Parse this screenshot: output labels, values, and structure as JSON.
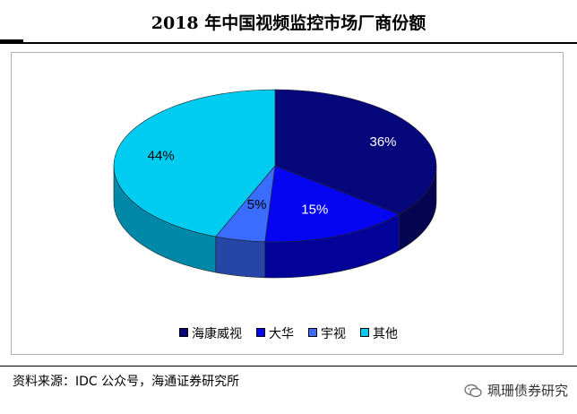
{
  "header": {
    "title": "2018 年中国视频监控市场厂商份额"
  },
  "chart_data": {
    "type": "pie",
    "style": "3d",
    "title": "2018 年中国视频监控市场厂商份额",
    "categories": [
      "海康威视",
      "大华",
      "宇视",
      "其他"
    ],
    "values": [
      36,
      15,
      5,
      44
    ],
    "labels": [
      "36%",
      "15%",
      "5%",
      "44%"
    ],
    "colors": [
      "#07077c",
      "#0505f2",
      "#3a6cff",
      "#00ccf2"
    ],
    "side_colors": [
      "#040450",
      "#03039a",
      "#2546a6",
      "#0088a8"
    ],
    "label_colors": [
      "#ffffff",
      "#ffffff",
      "#000000",
      "#000000"
    ],
    "legend_position": "bottom"
  },
  "footer": {
    "source": "资料来源：IDC 公众号，海通证券研究所",
    "watermark": "珮珊债券研究"
  }
}
